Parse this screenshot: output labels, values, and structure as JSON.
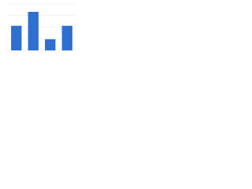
{
  "chart_data": {
    "type": "bar",
    "categories": [
      null,
      null,
      null,
      null
    ],
    "values": [
      53,
      83,
      24,
      53
    ],
    "color": "#2f6fcf",
    "ylim": [
      0,
      100
    ],
    "yticks": [
      0,
      25,
      50,
      75,
      100
    ],
    "grid": true
  }
}
